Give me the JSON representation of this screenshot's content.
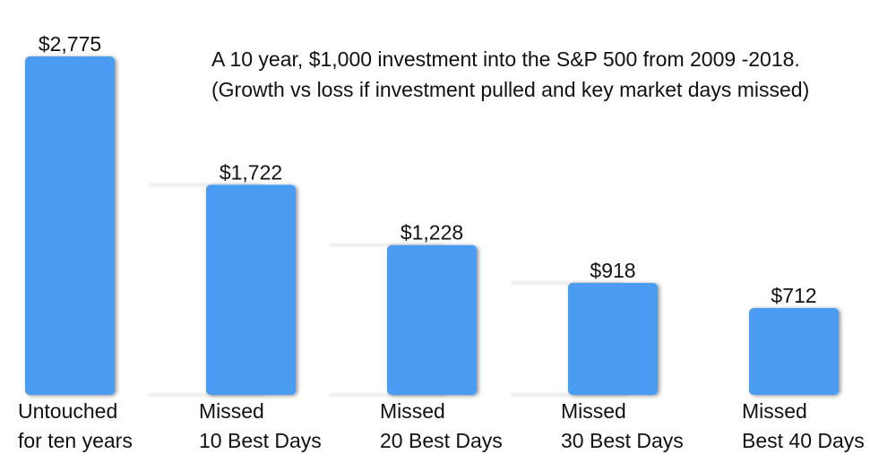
{
  "chart_data": {
    "type": "bar",
    "title": [
      "A 10 year, $1,000 investment into the S&P 500 from 2009 -2018.",
      "(Growth vs loss if investment pulled and key market days missed)"
    ],
    "categories": [
      [
        "Untouched",
        "for ten years"
      ],
      [
        "Missed",
        "10 Best Days"
      ],
      [
        "Missed",
        "20 Best Days"
      ],
      [
        "Missed",
        "30 Best Days"
      ],
      [
        "Missed",
        "Best 40 Days"
      ]
    ],
    "values": [
      2775,
      1722,
      1228,
      918,
      712
    ],
    "value_labels": [
      "$2,775",
      "$1,722",
      "$1,228",
      "$918",
      "$712"
    ],
    "xlabel": "",
    "ylabel": "",
    "ylim": [
      0,
      2775
    ],
    "grid": false,
    "bar_color": "#4a9cf2"
  }
}
